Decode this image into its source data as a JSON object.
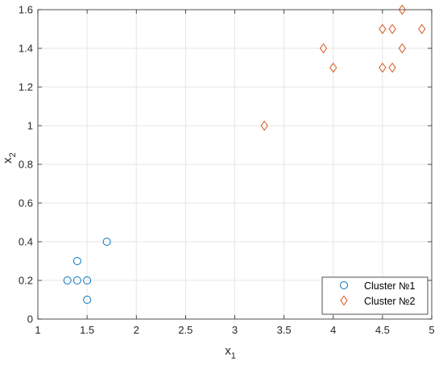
{
  "chart_data": {
    "type": "scatter",
    "title": "",
    "xlabel": "x",
    "xlabel_sub": "1",
    "ylabel": "x",
    "ylabel_sub": "2",
    "xlim": [
      1,
      5
    ],
    "ylim": [
      0,
      1.6
    ],
    "xticks": [
      1,
      1.5,
      2,
      2.5,
      3,
      3.5,
      4,
      4.5,
      5
    ],
    "yticks": [
      0,
      0.2,
      0.4,
      0.6,
      0.8,
      1,
      1.2,
      1.4,
      1.6
    ],
    "grid": true,
    "legend_position": "bottom-right",
    "series": [
      {
        "name": "Cluster №1",
        "marker": "circle",
        "color": "#0072BD",
        "points": [
          [
            1.3,
            0.2
          ],
          [
            1.4,
            0.2
          ],
          [
            1.5,
            0.2
          ],
          [
            1.4,
            0.3
          ],
          [
            1.5,
            0.1
          ],
          [
            1.7,
            0.4
          ]
        ]
      },
      {
        "name": "Cluster №2",
        "marker": "diamond",
        "color": "#D95319",
        "points": [
          [
            3.3,
            1.0
          ],
          [
            3.9,
            1.4
          ],
          [
            4.0,
            1.3
          ],
          [
            4.5,
            1.3
          ],
          [
            4.6,
            1.3
          ],
          [
            4.5,
            1.5
          ],
          [
            4.6,
            1.5
          ],
          [
            4.7,
            1.4
          ],
          [
            4.7,
            1.6
          ],
          [
            4.9,
            1.5
          ]
        ]
      }
    ]
  }
}
